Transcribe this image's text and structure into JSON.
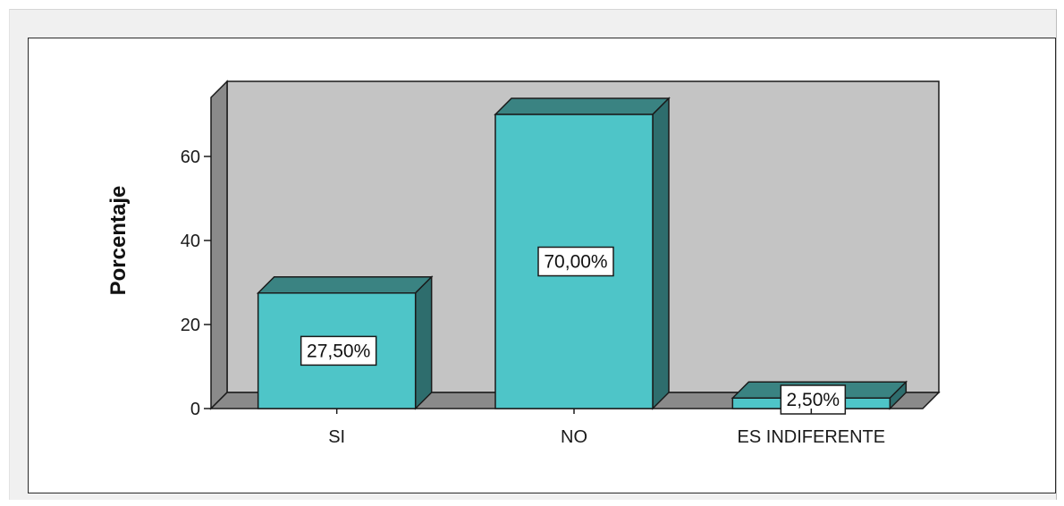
{
  "chart_data": {
    "type": "bar",
    "categories": [
      "SI",
      "NO",
      "ES INDIFERENTE"
    ],
    "values": [
      27.5,
      70.0,
      2.5
    ],
    "data_labels": [
      "27,50%",
      "70,00%",
      "2,50%"
    ],
    "title": "",
    "xlabel": "",
    "ylabel": "Porcentaje",
    "ylim": [
      0,
      75
    ],
    "yticks": [
      0,
      20,
      40,
      60
    ],
    "ytick_labels": [
      "0",
      "20",
      "40",
      "60"
    ],
    "style": "3d-bar",
    "grid": false,
    "legend": "none",
    "colors": {
      "bar_front": "#4ec5c8",
      "bar_top": "#3a8382",
      "bar_side": "#2e6d6d",
      "back_wall": "#c4c4c4",
      "floor": "#8a8a8a",
      "left_wall": "#8a8a8a",
      "label_box": "#ffffff",
      "outline": "#1a1a1a"
    }
  }
}
